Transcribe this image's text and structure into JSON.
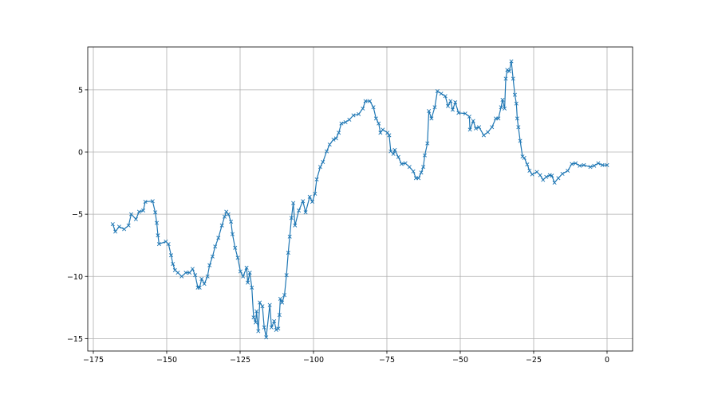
{
  "chart_data": {
    "type": "line",
    "title": "",
    "xlabel": "",
    "ylabel": "",
    "xlim": [
      -176.9,
      8.7
    ],
    "ylim": [
      -16.0,
      8.45
    ],
    "grid": true,
    "marker": "x",
    "color": "#1f77b4",
    "xticks": [
      -175,
      -150,
      -125,
      -100,
      -75,
      -50,
      -25,
      0
    ],
    "yticks": [
      -15,
      -10,
      -5,
      0,
      5
    ],
    "xtick_labels": [
      "−175",
      "−150",
      "−125",
      "−100",
      "−75",
      "−50",
      "−25",
      "0"
    ],
    "ytick_labels": [
      "−15",
      "−10",
      "−5",
      "0",
      "5"
    ],
    "series": [
      {
        "x": [
          -168.4,
          -167.5,
          -166.2,
          -164.5,
          -163.0,
          -162.1,
          -160.5,
          -159.4,
          -158.0,
          -157.3,
          -154.8,
          -153.9,
          -153.4,
          -153.0,
          -152.6,
          -150.3,
          -149.4,
          -148.5,
          -147.9,
          -147.2,
          -146.2,
          -144.9,
          -143.5,
          -142.2,
          -141.2,
          -140.3,
          -139.4,
          -138.8,
          -138.1,
          -137.2,
          -136.1,
          -135.4,
          -134.4,
          -133.5,
          -132.4,
          -131.2,
          -130.3,
          -129.7,
          -129.0,
          -128.1,
          -127.6,
          -126.7,
          -125.8,
          -124.9,
          -124.0,
          -122.8,
          -122.4,
          -121.7,
          -121.0,
          -120.4,
          -119.7,
          -119.4,
          -118.8,
          -118.3,
          -117.4,
          -116.8,
          -116.1,
          -114.9,
          -114.3,
          -113.4,
          -112.7,
          -112.0,
          -111.6,
          -111.3,
          -110.7,
          -109.9,
          -109.2,
          -108.6,
          -108.1,
          -107.5,
          -106.9,
          -106.3,
          -105.0,
          -103.6,
          -102.7,
          -101.3,
          -100.4,
          -99.5,
          -98.9,
          -97.7,
          -96.8,
          -95.5,
          -94.5,
          -93.2,
          -92.3,
          -91.4,
          -90.5,
          -89.1,
          -87.8,
          -86.4,
          -84.6,
          -83.2,
          -82.3,
          -80.8,
          -79.6,
          -78.7,
          -77.8,
          -77.2,
          -76.4,
          -74.8,
          -74.2,
          -73.7,
          -72.8,
          -72.3,
          -71.1,
          -70.0,
          -68.7,
          -67.3,
          -66.0,
          -65.1,
          -64.2,
          -63.3,
          -62.6,
          -62.1,
          -61.2,
          -60.7,
          -59.8,
          -58.7,
          -57.8,
          -56.5,
          -55.1,
          -54.2,
          -53.3,
          -52.6,
          -51.7,
          -50.6,
          -48.3,
          -46.9,
          -46.7,
          -45.6,
          -44.7,
          -43.6,
          -42.0,
          -40.6,
          -39.2,
          -37.9,
          -37.0,
          -36.1,
          -35.6,
          -34.9,
          -34.5,
          -34.0,
          -33.3,
          -32.6,
          -32.0,
          -31.4,
          -30.9,
          -30.6,
          -30.2,
          -29.6,
          -28.8,
          -28.2,
          -27.2,
          -26.4,
          -25.5,
          -23.9,
          -22.8,
          -21.8,
          -20.7,
          -19.5,
          -18.8,
          -17.9,
          -16.6,
          -15.2,
          -13.4,
          -12.0,
          -10.7,
          -9.3,
          -7.9,
          -5.7,
          -4.4,
          -3.0,
          -1.6,
          0.0
        ],
        "y": [
          -5.8,
          -6.4,
          -6.0,
          -6.2,
          -5.9,
          -5.0,
          -5.4,
          -4.8,
          -4.7,
          -4.0,
          -3.95,
          -4.85,
          -5.7,
          -6.7,
          -7.4,
          -7.2,
          -7.4,
          -8.3,
          -9.0,
          -9.5,
          -9.7,
          -10.0,
          -9.7,
          -9.7,
          -9.4,
          -9.9,
          -10.9,
          -10.9,
          -10.2,
          -10.6,
          -10.0,
          -9.1,
          -8.4,
          -7.6,
          -6.9,
          -5.9,
          -5.2,
          -4.8,
          -5.0,
          -5.6,
          -6.6,
          -7.7,
          -8.5,
          -9.6,
          -10.0,
          -9.3,
          -10.5,
          -9.7,
          -10.9,
          -13.3,
          -13.7,
          -12.8,
          -14.4,
          -12.1,
          -12.4,
          -14.1,
          -14.9,
          -12.3,
          -14.1,
          -13.6,
          -14.3,
          -14.2,
          -13.1,
          -11.8,
          -12.1,
          -11.5,
          -9.9,
          -8.1,
          -6.8,
          -5.3,
          -4.1,
          -5.9,
          -4.7,
          -3.95,
          -4.85,
          -3.6,
          -4.0,
          -3.35,
          -2.2,
          -1.2,
          -0.8,
          0.06,
          0.6,
          1.0,
          1.1,
          1.55,
          2.3,
          2.4,
          2.6,
          2.95,
          3.05,
          3.5,
          4.1,
          4.1,
          3.6,
          2.7,
          2.3,
          1.55,
          1.8,
          1.55,
          1.35,
          0.06,
          -0.15,
          0.17,
          -0.4,
          -0.96,
          -0.9,
          -1.2,
          -1.55,
          -2.1,
          -2.1,
          -1.65,
          -1.2,
          -0.26,
          0.7,
          3.3,
          2.7,
          3.6,
          4.9,
          4.7,
          4.5,
          3.7,
          4.1,
          3.4,
          4.0,
          3.15,
          3.1,
          2.85,
          1.8,
          2.5,
          1.9,
          2.0,
          1.35,
          1.6,
          2.0,
          2.7,
          2.7,
          3.6,
          4.2,
          3.5,
          5.9,
          6.6,
          6.5,
          7.3,
          5.9,
          4.6,
          3.9,
          2.7,
          2.0,
          0.9,
          -0.36,
          -0.47,
          -1.0,
          -1.5,
          -1.8,
          -1.6,
          -1.86,
          -2.24,
          -2.0,
          -1.86,
          -1.9,
          -2.46,
          -2.1,
          -1.75,
          -1.5,
          -0.96,
          -0.9,
          -1.1,
          -1.05,
          -1.2,
          -1.1,
          -0.9,
          -1.05,
          -1.05
        ]
      }
    ]
  }
}
